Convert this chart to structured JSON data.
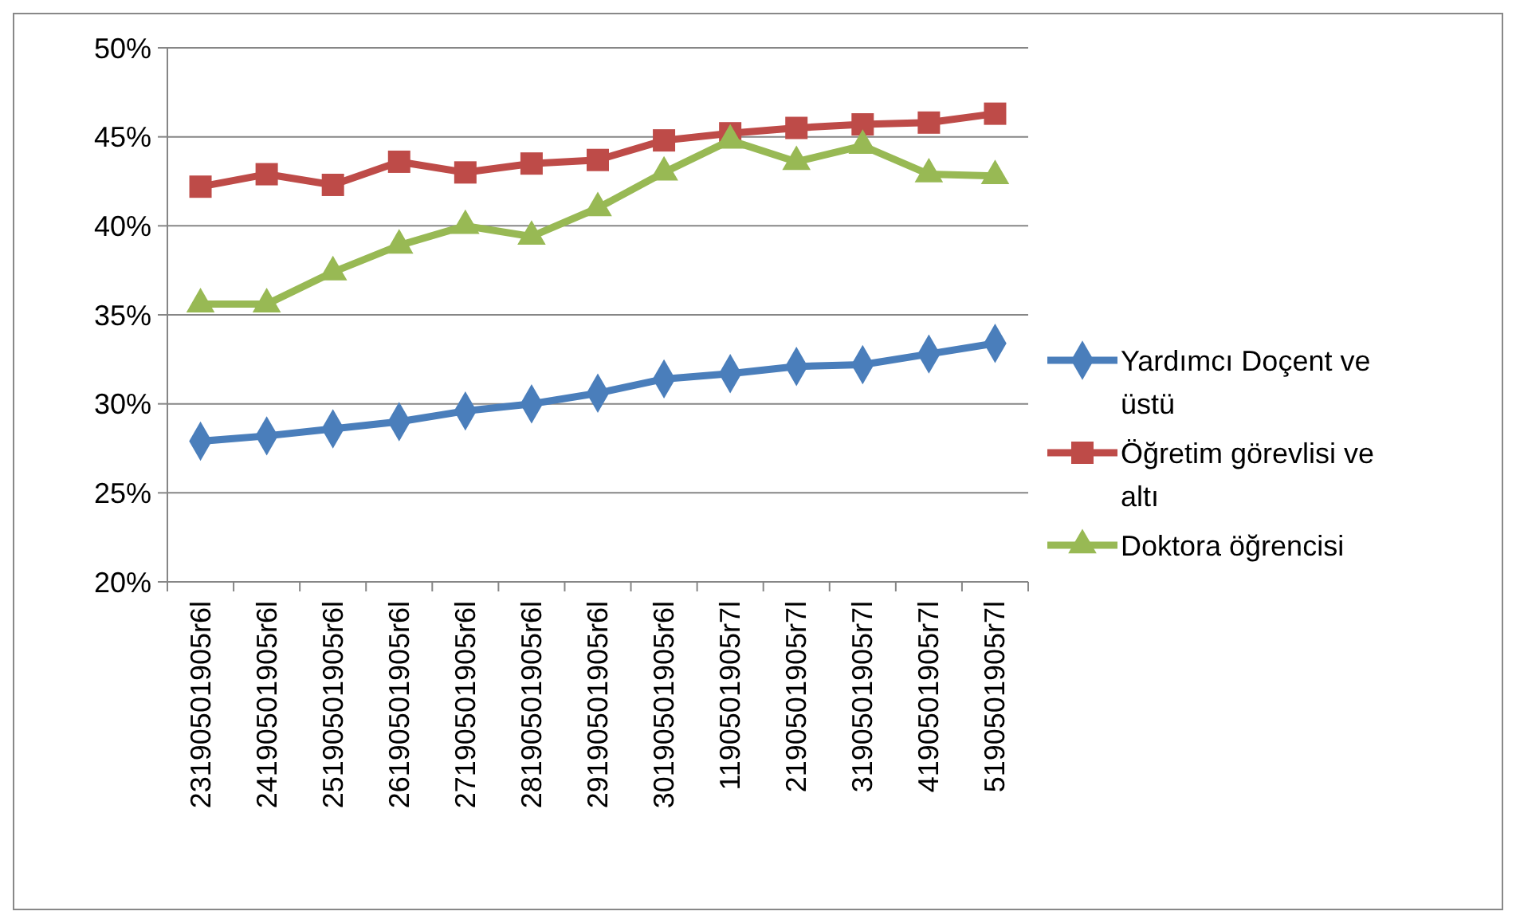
{
  "chart_data": {
    "type": "line",
    "categories": [
      "23190501905r6l",
      "24190501905r6l",
      "25190501905r6l",
      "26190501905r6l",
      "27190501905r6l",
      "28190501905r6l",
      "29190501905r6l",
      "30190501905r6l",
      "1190501905r7l",
      "2190501905r7l",
      "3190501905r7l",
      "4190501905r7l",
      "5190501905r7l"
    ],
    "series": [
      {
        "name": "Yardımcı Doçent ve üstü",
        "color": "#4a7ebb",
        "marker": "diamond",
        "values": [
          27.9,
          28.2,
          28.6,
          29.0,
          29.6,
          30.0,
          30.6,
          31.4,
          31.7,
          32.1,
          32.2,
          32.8,
          33.4
        ]
      },
      {
        "name": "Öğretim görevlisi ve altı",
        "color": "#be4b48",
        "marker": "square",
        "values": [
          42.2,
          42.9,
          42.3,
          43.6,
          43.0,
          43.5,
          43.7,
          44.8,
          45.2,
          45.5,
          45.7,
          45.8,
          46.3
        ]
      },
      {
        "name": "Doktora öğrencisi",
        "color": "#98b954",
        "marker": "triangle",
        "values": [
          35.6,
          35.6,
          37.4,
          38.9,
          40.0,
          39.4,
          41.0,
          43.0,
          44.8,
          43.6,
          44.5,
          42.9,
          42.8
        ]
      }
    ],
    "ylim": [
      20,
      50
    ],
    "yticks": [
      {
        "value": 20,
        "label": "20%"
      },
      {
        "value": 25,
        "label": "25%"
      },
      {
        "value": 30,
        "label": "30%"
      },
      {
        "value": 35,
        "label": "35%"
      },
      {
        "value": 40,
        "label": "40%"
      },
      {
        "value": 45,
        "label": "45%"
      },
      {
        "value": 50,
        "label": "50%"
      }
    ],
    "grid": "y",
    "legend": "right"
  }
}
